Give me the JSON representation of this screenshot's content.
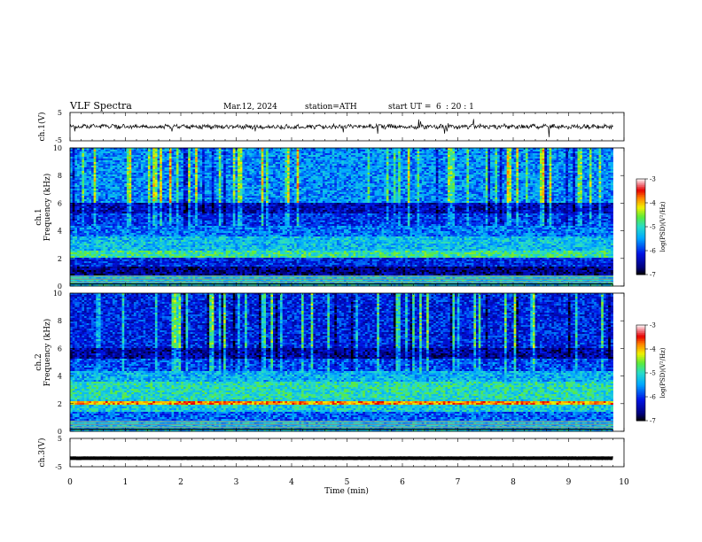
{
  "header": {
    "title": "VLF  Spectra",
    "date": "Mar.12, 2024",
    "station": "station=ATH",
    "start_label": "start  UT  =",
    "start_hour": "6",
    "start_minsec": ": 20 : 1"
  },
  "chart_data": [
    {
      "type": "line",
      "ylabel": "ch.1(V)",
      "ylim": [
        -5,
        5
      ],
      "yticks": [
        "5",
        "-5"
      ],
      "xlim": [
        0,
        10
      ],
      "baseline": 0,
      "trace_color": "#000000"
    },
    {
      "type": "heatmap",
      "ylabel": "ch.1\nFrequency (kHz)",
      "ylabel_line1": "ch.1",
      "ylabel_line2": "Frequency (kHz)",
      "ylim": [
        0,
        10
      ],
      "yticks": [
        "0",
        "2",
        "4",
        "6",
        "8",
        "10"
      ],
      "xlim": [
        0,
        9.8
      ],
      "colorbar": {
        "label": "log(PSD)(V²/Hz)",
        "range": [
          -7,
          -3
        ],
        "ticks": [
          "-3",
          "-4",
          "-5",
          "-6",
          "-7"
        ]
      }
    },
    {
      "type": "heatmap",
      "ylabel": "ch.2\nFrequency (kHz)",
      "ylabel_line1": "ch.2",
      "ylabel_line2": "Frequency (kHz)",
      "ylim": [
        0,
        10
      ],
      "yticks": [
        "0",
        "2",
        "4",
        "6",
        "8",
        "10"
      ],
      "xlim": [
        0,
        9.8
      ],
      "colorbar": {
        "label": "log(PSD)(V²/Hz)",
        "range": [
          -7,
          -3
        ],
        "ticks": [
          "-3",
          "-4",
          "-5",
          "-6",
          "-7"
        ]
      }
    },
    {
      "type": "line",
      "ylabel": "ch.3(V)",
      "ylim": [
        -5,
        5
      ],
      "yticks": [
        "5",
        "-5"
      ],
      "xlim": [
        0,
        10
      ],
      "baseline": -2,
      "trace_color": "#000000"
    }
  ],
  "xaxis": {
    "label": "Time  (min)",
    "ticks": [
      "0",
      "1",
      "2",
      "3",
      "4",
      "5",
      "6",
      "7",
      "8",
      "9",
      "10"
    ]
  }
}
